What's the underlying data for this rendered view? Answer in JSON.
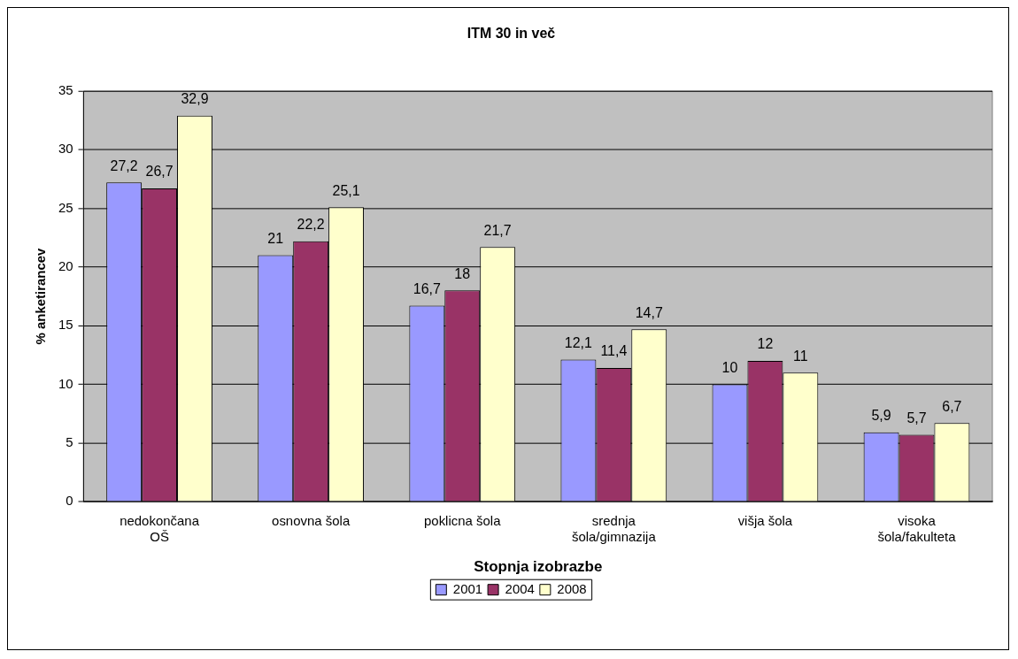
{
  "chart_data": {
    "type": "bar",
    "title": "ITM 30 in več",
    "xlabel": "Stopnja izobrazbe",
    "ylabel": "% anketirancev",
    "categories": [
      "nedokončana OŠ",
      "osnovna šola",
      "poklicna šola",
      "srednja šola/gimnazija",
      "višja šola",
      "visoka šola/fakulteta"
    ],
    "series": [
      {
        "name": "2001",
        "color": "#9999ff",
        "values": [
          27.2,
          21,
          16.7,
          12.1,
          10,
          5.9
        ],
        "value_labels": [
          "27,2",
          "21",
          "16,7",
          "12,1",
          "10",
          "5,9"
        ]
      },
      {
        "name": "2004",
        "color": "#993366",
        "values": [
          26.7,
          22.2,
          18,
          11.4,
          12,
          5.7
        ],
        "value_labels": [
          "26,7",
          "22,2",
          "18",
          "11,4",
          "12",
          "5,7"
        ]
      },
      {
        "name": "2008",
        "color": "#ffffcc",
        "values": [
          32.9,
          25.1,
          21.7,
          14.7,
          11,
          6.7
        ],
        "value_labels": [
          "32,9",
          "25,1",
          "21,7",
          "14,7",
          "11",
          "6,7"
        ]
      }
    ],
    "ylim": [
      0,
      35
    ],
    "yticks": [
      0,
      5,
      10,
      15,
      20,
      25,
      30,
      35
    ],
    "grid": "y",
    "legend": "bottom"
  }
}
